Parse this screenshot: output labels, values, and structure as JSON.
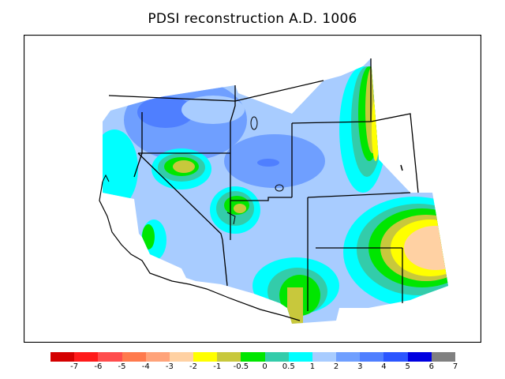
{
  "title": "PDSI reconstruction A.D. 1006",
  "legend": {
    "colors": [
      "#d40000",
      "#ff1a1a",
      "#ff4d4d",
      "#ff7a4d",
      "#ffa37a",
      "#ffd1a3",
      "#ffff00",
      "#c8c83c",
      "#00e600",
      "#33ccaa",
      "#00ffff",
      "#a8ccff",
      "#6f9fff",
      "#4f7fff",
      "#2b55ff",
      "#0000e0",
      "#808080"
    ],
    "labels": [
      "-7",
      "-6",
      "-5",
      "-4",
      "-3",
      "-2",
      "-1",
      "-0.5",
      "0",
      "0.5",
      "1",
      "2",
      "3",
      "4",
      "5",
      "6",
      "7"
    ]
  },
  "map": {
    "background_color": "#a8ccff",
    "region": "Western United States"
  }
}
